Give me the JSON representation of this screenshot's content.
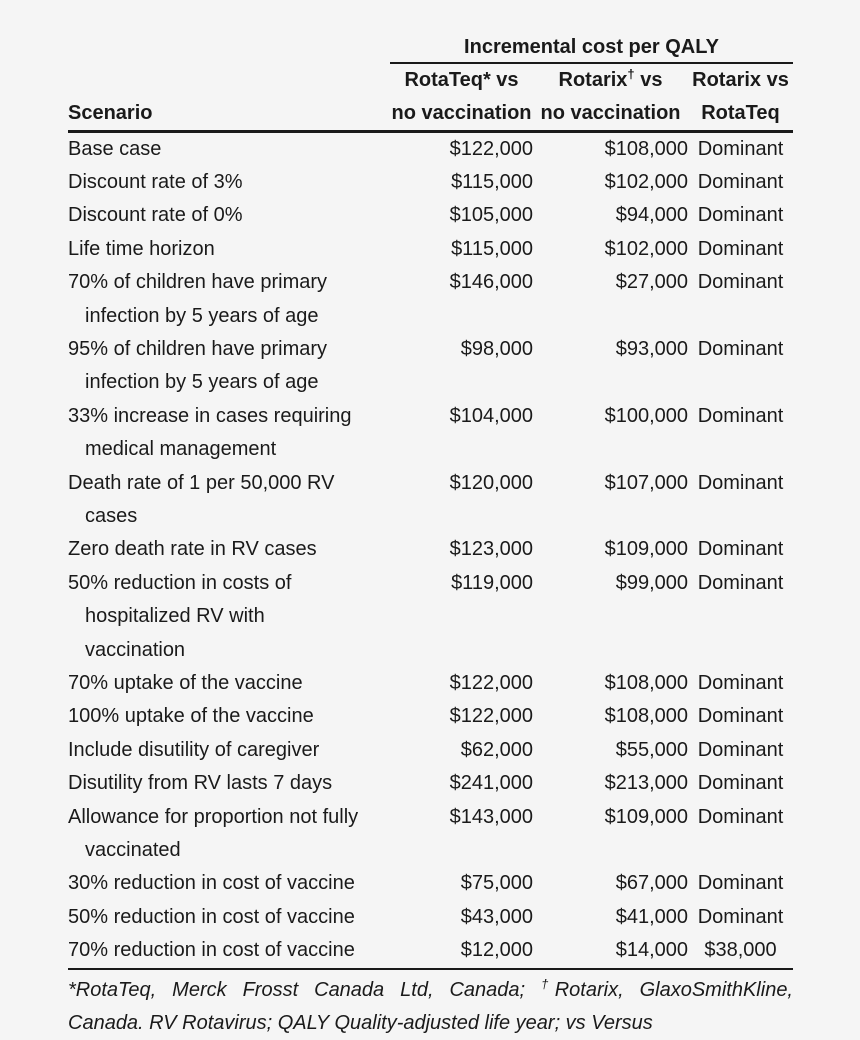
{
  "colors": {
    "background": "#f5f5f5",
    "text": "#1a1a1a",
    "rule": "#1a1a1a"
  },
  "table": {
    "spanner_header": "Incremental cost per QALY",
    "scenario_header": "Scenario",
    "columns": [
      {
        "line1": "RotaTeq* vs",
        "line2": "no vaccination"
      },
      {
        "line1_name": "Rotarix",
        "line1_marker": "†",
        "line1_after": " vs",
        "line2": "no vaccination"
      },
      {
        "line1": "Rotarix vs",
        "line2": "RotaTeq"
      }
    ],
    "rows": [
      {
        "scenario_lines": [
          "Base case"
        ],
        "rotateq_vs_no_vaccination": "$122,000",
        "rotarix_vs_no_vaccination": "$108,000",
        "rotarix_vs_rotateq": "Dominant"
      },
      {
        "scenario_lines": [
          "Discount rate of 3%"
        ],
        "rotateq_vs_no_vaccination": "$115,000",
        "rotarix_vs_no_vaccination": "$102,000",
        "rotarix_vs_rotateq": "Dominant"
      },
      {
        "scenario_lines": [
          "Discount rate of 0%"
        ],
        "rotateq_vs_no_vaccination": "$105,000",
        "rotarix_vs_no_vaccination": "$94,000",
        "rotarix_vs_rotateq": "Dominant"
      },
      {
        "scenario_lines": [
          "Life time horizon"
        ],
        "rotateq_vs_no_vaccination": "$115,000",
        "rotarix_vs_no_vaccination": "$102,000",
        "rotarix_vs_rotateq": "Dominant"
      },
      {
        "scenario_lines": [
          "70% of children have primary",
          "infection by 5 years of age"
        ],
        "rotateq_vs_no_vaccination": "$146,000",
        "rotarix_vs_no_vaccination": "$27,000",
        "rotarix_vs_rotateq": "Dominant"
      },
      {
        "scenario_lines": [
          "95% of children have primary",
          "infection by 5 years of age"
        ],
        "rotateq_vs_no_vaccination": "$98,000",
        "rotarix_vs_no_vaccination": "$93,000",
        "rotarix_vs_rotateq": "Dominant"
      },
      {
        "scenario_lines": [
          "33% increase in cases requiring",
          "medical management"
        ],
        "rotateq_vs_no_vaccination": "$104,000",
        "rotarix_vs_no_vaccination": "$100,000",
        "rotarix_vs_rotateq": "Dominant"
      },
      {
        "scenario_lines": [
          "Death rate of 1 per 50,000 RV",
          "cases"
        ],
        "rotateq_vs_no_vaccination": "$120,000",
        "rotarix_vs_no_vaccination": "$107,000",
        "rotarix_vs_rotateq": "Dominant"
      },
      {
        "scenario_lines": [
          "Zero death rate in RV cases"
        ],
        "rotateq_vs_no_vaccination": "$123,000",
        "rotarix_vs_no_vaccination": "$109,000",
        "rotarix_vs_rotateq": "Dominant"
      },
      {
        "scenario_lines": [
          "50% reduction in costs of",
          "hospitalized RV with",
          "vaccination"
        ],
        "rotateq_vs_no_vaccination": "$119,000",
        "rotarix_vs_no_vaccination": "$99,000",
        "rotarix_vs_rotateq": "Dominant"
      },
      {
        "scenario_lines": [
          "70% uptake of the vaccine"
        ],
        "rotateq_vs_no_vaccination": "$122,000",
        "rotarix_vs_no_vaccination": "$108,000",
        "rotarix_vs_rotateq": "Dominant"
      },
      {
        "scenario_lines": [
          "100% uptake of the vaccine"
        ],
        "rotateq_vs_no_vaccination": "$122,000",
        "rotarix_vs_no_vaccination": "$108,000",
        "rotarix_vs_rotateq": "Dominant"
      },
      {
        "scenario_lines": [
          "Include disutility of caregiver"
        ],
        "rotateq_vs_no_vaccination": "$62,000",
        "rotarix_vs_no_vaccination": "$55,000",
        "rotarix_vs_rotateq": "Dominant"
      },
      {
        "scenario_lines": [
          "Disutility from RV lasts 7 days"
        ],
        "rotateq_vs_no_vaccination": "$241,000",
        "rotarix_vs_no_vaccination": "$213,000",
        "rotarix_vs_rotateq": "Dominant"
      },
      {
        "scenario_lines": [
          "Allowance for proportion not fully",
          "vaccinated"
        ],
        "rotateq_vs_no_vaccination": "$143,000",
        "rotarix_vs_no_vaccination": "$109,000",
        "rotarix_vs_rotateq": "Dominant"
      },
      {
        "scenario_lines": [
          "30% reduction in cost of vaccine"
        ],
        "rotateq_vs_no_vaccination": "$75,000",
        "rotarix_vs_no_vaccination": "$67,000",
        "rotarix_vs_rotateq": "Dominant"
      },
      {
        "scenario_lines": [
          "50% reduction in cost of vaccine"
        ],
        "rotateq_vs_no_vaccination": "$43,000",
        "rotarix_vs_no_vaccination": "$41,000",
        "rotarix_vs_rotateq": "Dominant"
      },
      {
        "scenario_lines": [
          "70% reduction in cost of vaccine"
        ],
        "rotateq_vs_no_vaccination": "$12,000",
        "rotarix_vs_no_vaccination": "$14,000",
        "rotarix_vs_rotateq": "$38,000"
      }
    ]
  },
  "footnote": {
    "line1_part1": "*RotaTeq, Merck Frosst Canada Ltd, Canada; ",
    "line1_sup": "†",
    "line1_part2": "Rotarix, GlaxoSmithKline,",
    "line2": "Canada. RV Rotavirus; QALY Quality-adjusted life year; vs Versus"
  }
}
